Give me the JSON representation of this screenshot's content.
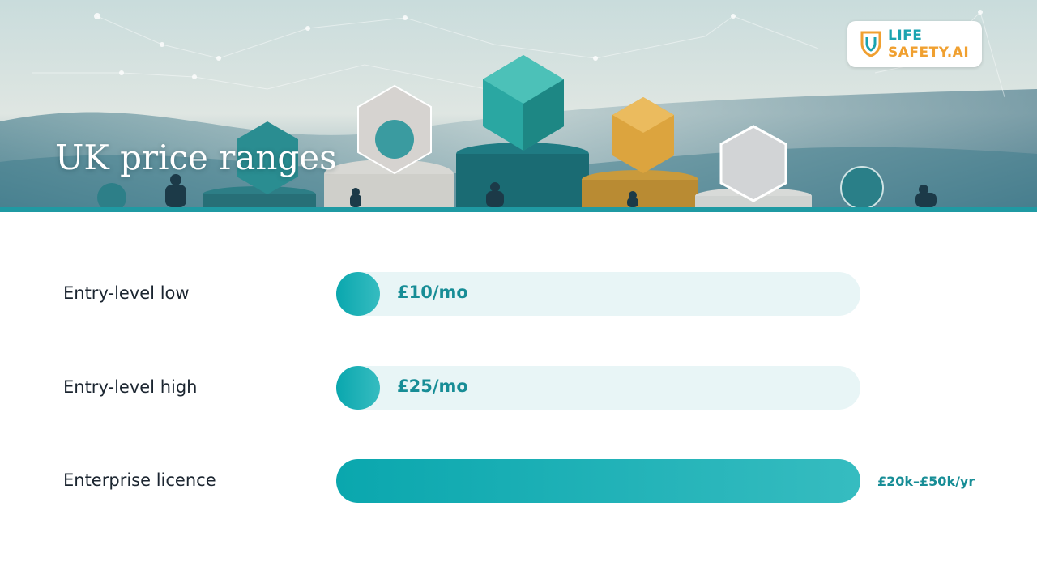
{
  "header": {
    "title": "UK price ranges"
  },
  "logo": {
    "line1": "LIFE",
    "line2": "SAFETY.AI"
  },
  "rows": [
    {
      "label": "Entry-level low",
      "value": "£10/mo"
    },
    {
      "label": "Entry-level high",
      "value": "£25/mo"
    },
    {
      "label": "Enterprise licence",
      "value": "£20k–£50k/yr"
    }
  ]
}
